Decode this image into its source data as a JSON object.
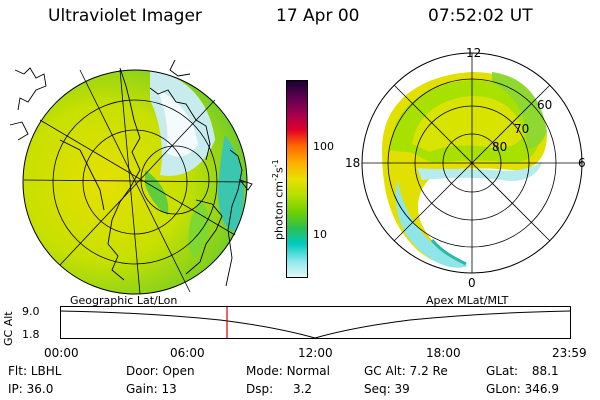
{
  "header": {
    "title": "Ultraviolet Imager",
    "date": "17 Apr 00",
    "time": "07:52:02 UT"
  },
  "colorbar": {
    "label": "photon cm",
    "label_sup1": "-2",
    "label_s": "s",
    "label_sup2": "-1",
    "ticks": [
      "100",
      "10"
    ],
    "colors": [
      "#1a0033",
      "#5a004f",
      "#a3004f",
      "#e2002a",
      "#ff6600",
      "#ffb000",
      "#e8e000",
      "#b8e000",
      "#6fd000",
      "#2bc050",
      "#00c8c0",
      "#8ee8ee",
      "#e4f6f6"
    ]
  },
  "polar_plot": {
    "lat_labels": [
      "60",
      "70",
      "80"
    ],
    "mlt_labels": {
      "top": "12",
      "left": "18",
      "right": "6",
      "bottom": "0"
    }
  },
  "map_labels": {
    "left": "Geographic Lat/Lon",
    "right": "Apex MLat/MLT"
  },
  "altitude_strip": {
    "ylabel": "GC Alt",
    "ticks": [
      "9.0",
      "1.8"
    ],
    "time_ticks": [
      "00:00",
      "06:00",
      "12:00",
      "18:00",
      "23:59"
    ],
    "marker_time": "07:52"
  },
  "info": {
    "row1": [
      {
        "k": "Flt:",
        "v": "LBHL"
      },
      {
        "k": "Door:",
        "v": "Open"
      },
      {
        "k": "Mode:",
        "v": "Normal"
      },
      {
        "k": "GC Alt:",
        "v": "7.2 Re"
      },
      {
        "k": "GLat:",
        "v": "88.1"
      }
    ],
    "row2": [
      {
        "k": "IP:",
        "v": "36.0"
      },
      {
        "k": "Gain:",
        "v": "13"
      },
      {
        "k": "Dsp:",
        "v": "3.2"
      },
      {
        "k": "Seq:",
        "v": "39"
      },
      {
        "k": "GLon:",
        "v": "346.9"
      }
    ]
  }
}
